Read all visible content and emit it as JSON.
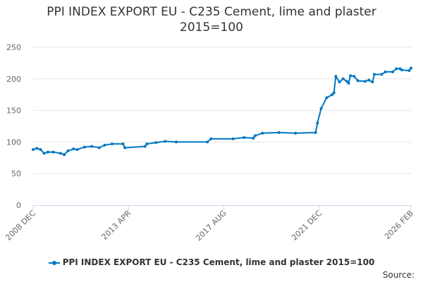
{
  "chart_data": {
    "type": "line",
    "title": "PPI INDEX EXPORT EU - C235 Cement, lime and plaster 2015=100",
    "title_lines": [
      "PPI INDEX EXPORT EU - C235 Cement, lime and plaster",
      "2015=100"
    ],
    "xlabel": "",
    "ylabel": "",
    "ylim": [
      0,
      250
    ],
    "yticks": [
      "0",
      "50",
      "100",
      "150",
      "200",
      "250"
    ],
    "xlim": [
      "2008-12",
      "2026-02"
    ],
    "xticks": [
      {
        "date": "2008-12",
        "label": "2008 DEC"
      },
      {
        "date": "2013-04",
        "label": "2013 APR"
      },
      {
        "date": "2017-08",
        "label": "2017 AUG"
      },
      {
        "date": "2021-12",
        "label": "2021 DEC"
      },
      {
        "date": "2026-02",
        "label": "2026 FEB"
      }
    ],
    "grid": true,
    "legend_position": "bottom",
    "color": "#0077c2",
    "series": [
      {
        "name": "PPI INDEX EXPORT EU - C235 Cement, lime and plaster 2015=100",
        "points": [
          [
            "2008-12",
            88
          ],
          [
            "2009-02",
            90
          ],
          [
            "2009-04",
            88
          ],
          [
            "2009-06",
            82
          ],
          [
            "2009-08",
            84
          ],
          [
            "2009-11",
            84
          ],
          [
            "2010-03",
            82
          ],
          [
            "2010-05",
            80
          ],
          [
            "2010-07",
            86
          ],
          [
            "2010-10",
            89
          ],
          [
            "2010-12",
            88
          ],
          [
            "2011-04",
            92
          ],
          [
            "2011-08",
            93
          ],
          [
            "2011-12",
            91
          ],
          [
            "2012-03",
            95
          ],
          [
            "2012-07",
            97
          ],
          [
            "2013-01",
            97
          ],
          [
            "2013-02",
            91
          ],
          [
            "2014-01",
            93
          ],
          [
            "2014-02",
            97
          ],
          [
            "2014-07",
            99
          ],
          [
            "2014-12",
            101
          ],
          [
            "2015-06",
            100
          ],
          [
            "2016-11",
            100
          ],
          [
            "2017-01",
            105
          ],
          [
            "2018-01",
            105
          ],
          [
            "2018-07",
            107
          ],
          [
            "2018-12",
            106
          ],
          [
            "2019-01",
            110
          ],
          [
            "2019-05",
            114
          ],
          [
            "2020-02",
            115
          ],
          [
            "2020-11",
            114
          ],
          [
            "2021-10",
            115
          ],
          [
            "2021-11",
            130
          ],
          [
            "2022-01",
            153
          ],
          [
            "2022-04",
            170
          ],
          [
            "2022-07",
            175
          ],
          [
            "2022-08",
            178
          ],
          [
            "2022-09",
            204
          ],
          [
            "2022-11",
            195
          ],
          [
            "2023-01",
            200
          ],
          [
            "2023-03",
            196
          ],
          [
            "2023-04",
            193
          ],
          [
            "2023-05",
            205
          ],
          [
            "2023-07",
            204
          ],
          [
            "2023-09",
            197
          ],
          [
            "2024-01",
            196
          ],
          [
            "2024-03",
            198
          ],
          [
            "2024-05",
            195
          ],
          [
            "2024-06",
            207
          ],
          [
            "2024-10",
            207
          ],
          [
            "2024-12",
            211
          ],
          [
            "2025-04",
            211
          ],
          [
            "2025-06",
            216
          ],
          [
            "2025-08",
            216
          ],
          [
            "2025-09",
            214
          ],
          [
            "2026-01",
            213
          ],
          [
            "2026-02",
            217
          ]
        ]
      }
    ]
  },
  "source_label": "Source:"
}
